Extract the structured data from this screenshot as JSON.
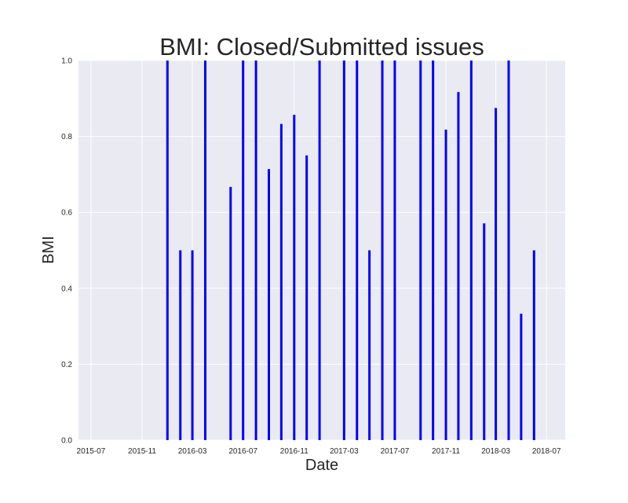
{
  "chart_data": {
    "type": "bar",
    "title": "BMI: Closed/Submitted issues",
    "xlabel": "Date",
    "ylabel": "BMI",
    "xlim": [
      "2015-06-01",
      "2018-08-15"
    ],
    "ylim": [
      0.0,
      1.0
    ],
    "grid": true,
    "x_ticks": [
      "2015-07",
      "2015-11",
      "2016-03",
      "2016-07",
      "2016-11",
      "2017-03",
      "2017-07",
      "2017-11",
      "2018-03",
      "2018-07"
    ],
    "y_ticks": [
      "0.0",
      "0.2",
      "0.4",
      "0.6",
      "0.8",
      "1.0"
    ],
    "bar_color": "#0000ff",
    "background_color": "#eaeaf2",
    "series": [
      {
        "x": [
          "2016-01",
          "2016-02",
          "2016-03",
          "2016-04",
          "2016-06",
          "2016-07",
          "2016-08",
          "2016-09",
          "2016-10",
          "2016-11",
          "2016-12",
          "2017-01",
          "2017-03",
          "2017-04",
          "2017-05",
          "2017-06",
          "2017-07",
          "2017-09",
          "2017-10",
          "2017-11",
          "2017-12",
          "2018-01",
          "2018-02",
          "2018-03",
          "2018-04",
          "2018-05",
          "2018-06"
        ],
        "values": [
          1.0,
          0.5,
          0.5,
          1.0,
          0.667,
          1.0,
          1.0,
          0.714,
          0.833,
          0.857,
          0.75,
          1.0,
          1.0,
          1.0,
          0.5,
          1.0,
          1.0,
          1.0,
          1.0,
          0.818,
          0.917,
          1.0,
          0.571,
          0.875,
          1.0,
          0.333,
          0.5
        ]
      }
    ]
  }
}
